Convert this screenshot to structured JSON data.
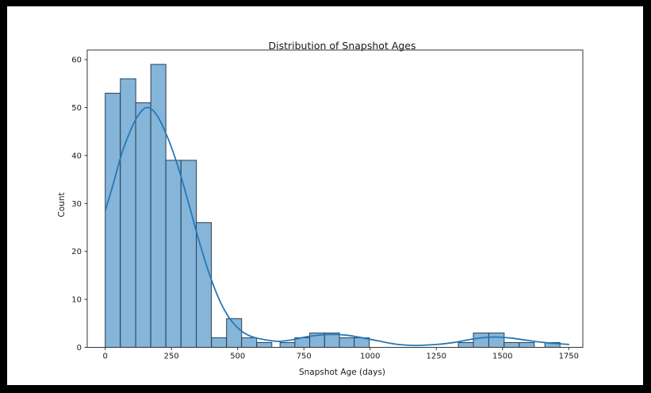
{
  "figure": {
    "frame_color": "#000000",
    "background": "#ffffff"
  },
  "chart": {
    "title": "Distribution of Snapshot Ages",
    "xlabel": "Snapshot Age (days)",
    "ylabel": "Count"
  },
  "chart_data": {
    "type": "bar",
    "subtype": "histogram_with_kde",
    "title": "Distribution of Snapshot Ages",
    "xlabel": "Snapshot Age (days)",
    "ylabel": "Count",
    "xlim": [
      -68,
      1803
    ],
    "ylim": [
      0,
      62
    ],
    "x_ticks": [
      0,
      250,
      500,
      750,
      1000,
      1250,
      1500,
      1750
    ],
    "y_ticks": [
      0,
      10,
      20,
      30,
      40,
      50,
      60
    ],
    "grid": false,
    "legend": false,
    "bin_width_days": 57,
    "bins": [
      {
        "x0": 0,
        "x1": 57,
        "count": 53
      },
      {
        "x0": 57,
        "x1": 115,
        "count": 56
      },
      {
        "x0": 115,
        "x1": 172,
        "count": 51
      },
      {
        "x0": 172,
        "x1": 229,
        "count": 59
      },
      {
        "x0": 229,
        "x1": 286,
        "count": 39
      },
      {
        "x0": 286,
        "x1": 344,
        "count": 39
      },
      {
        "x0": 344,
        "x1": 401,
        "count": 26
      },
      {
        "x0": 401,
        "x1": 458,
        "count": 2
      },
      {
        "x0": 458,
        "x1": 515,
        "count": 6
      },
      {
        "x0": 515,
        "x1": 572,
        "count": 2
      },
      {
        "x0": 572,
        "x1": 629,
        "count": 1
      },
      {
        "x0": 660,
        "x1": 716,
        "count": 1
      },
      {
        "x0": 716,
        "x1": 772,
        "count": 2
      },
      {
        "x0": 772,
        "x1": 828,
        "count": 3
      },
      {
        "x0": 828,
        "x1": 884,
        "count": 3
      },
      {
        "x0": 884,
        "x1": 940,
        "count": 2
      },
      {
        "x0": 940,
        "x1": 997,
        "count": 2
      },
      {
        "x0": 1333,
        "x1": 1390,
        "count": 1
      },
      {
        "x0": 1390,
        "x1": 1448,
        "count": 3
      },
      {
        "x0": 1448,
        "x1": 1506,
        "count": 3
      },
      {
        "x0": 1506,
        "x1": 1563,
        "count": 1
      },
      {
        "x0": 1563,
        "x1": 1620,
        "count": 1
      },
      {
        "x0": 1660,
        "x1": 1717,
        "count": 1
      }
    ],
    "kde_points": [
      [
        0,
        28.5
      ],
      [
        30,
        34
      ],
      [
        60,
        40
      ],
      [
        90,
        44.5
      ],
      [
        120,
        48
      ],
      [
        155,
        50
      ],
      [
        190,
        48.8
      ],
      [
        230,
        44.5
      ],
      [
        270,
        38.5
      ],
      [
        310,
        31
      ],
      [
        350,
        23
      ],
      [
        390,
        15.8
      ],
      [
        430,
        10
      ],
      [
        470,
        6
      ],
      [
        510,
        3.6
      ],
      [
        550,
        2.3
      ],
      [
        600,
        1.6
      ],
      [
        650,
        1.25
      ],
      [
        700,
        1.5
      ],
      [
        760,
        2.2
      ],
      [
        830,
        2.65
      ],
      [
        900,
        2.6
      ],
      [
        960,
        2.1
      ],
      [
        1030,
        1.35
      ],
      [
        1100,
        0.65
      ],
      [
        1170,
        0.4
      ],
      [
        1250,
        0.6
      ],
      [
        1320,
        1.05
      ],
      [
        1390,
        1.75
      ],
      [
        1460,
        2.15
      ],
      [
        1530,
        1.95
      ],
      [
        1600,
        1.4
      ],
      [
        1670,
        0.95
      ],
      [
        1750,
        0.6
      ]
    ],
    "style": {
      "bar_fill": "#85b5d9",
      "bar_edge": "#2a3f55",
      "kde_line": "#2678b5",
      "spine": "#333333",
      "tick_text": "#1a1a1a"
    }
  }
}
